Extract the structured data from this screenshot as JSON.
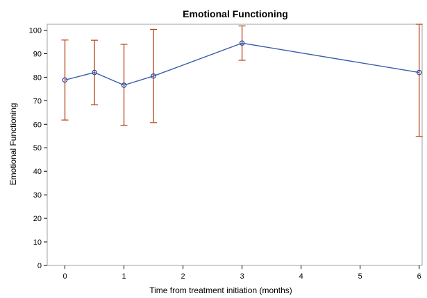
{
  "chart_data": {
    "type": "line",
    "title": "Emotional Functioning",
    "xlabel": "Time from treatment initiation (months)",
    "ylabel": "Emotional Functioning",
    "xlim": [
      -0.3,
      6.05
    ],
    "ylim": [
      0,
      102.5
    ],
    "xticks": [
      0,
      1,
      2,
      3,
      4,
      5,
      6
    ],
    "yticks": [
      0,
      10,
      20,
      30,
      40,
      50,
      60,
      70,
      80,
      90,
      100
    ],
    "grid": false,
    "series": [
      {
        "x": [
          0,
          0.5,
          1,
          1.5,
          3,
          6
        ],
        "y": [
          78.8,
          82.0,
          76.6,
          80.5,
          94.5,
          82.0
        ],
        "lower": [
          61.8,
          68.3,
          59.5,
          60.7,
          87.2,
          54.8
        ],
        "upper": [
          95.8,
          95.7,
          94.0,
          100.3,
          101.8,
          102.5
        ]
      }
    ],
    "colors": {
      "line": "#3b5cad",
      "marker": "#2c4aa0",
      "error_bar": "#b5451b",
      "frame": "#a0a0a0"
    }
  }
}
